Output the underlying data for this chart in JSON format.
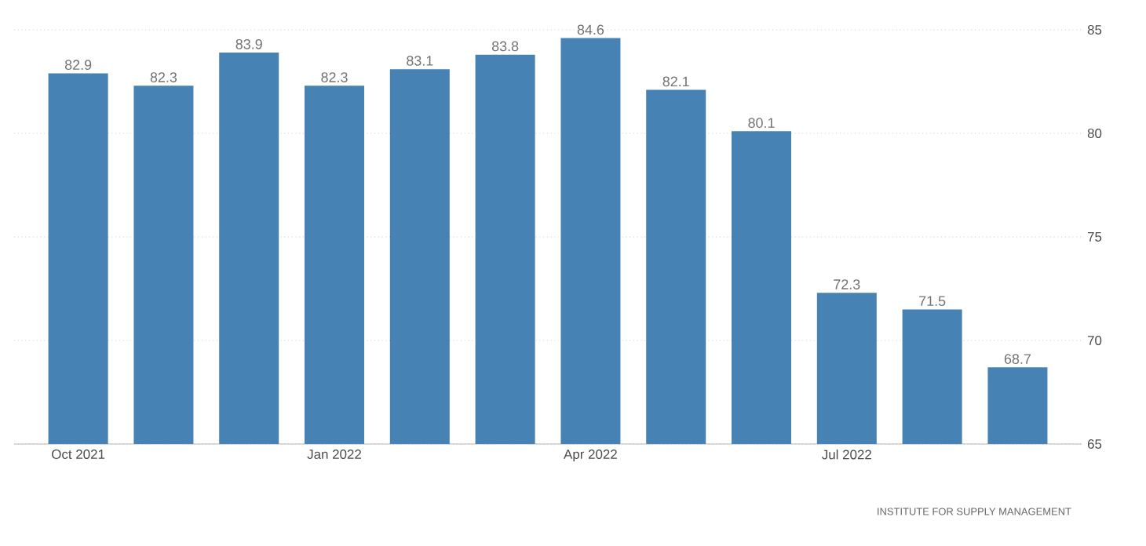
{
  "chart_data": {
    "type": "bar",
    "categories": [
      "Oct 2021",
      null,
      null,
      "Jan 2022",
      null,
      null,
      "Apr 2022",
      null,
      null,
      "Jul 2022",
      null,
      null
    ],
    "values": [
      82.9,
      82.3,
      83.9,
      82.3,
      83.1,
      83.8,
      84.6,
      82.1,
      80.1,
      72.3,
      71.5,
      68.7
    ],
    "color": "#4682b4",
    "ylim": [
      65,
      85
    ],
    "yticks": [
      65,
      70,
      75,
      80,
      85
    ],
    "grid": "y",
    "data_labels": true,
    "annotations": [
      "INSTITUTE FOR SUPPLY MANAGEMENT"
    ]
  }
}
